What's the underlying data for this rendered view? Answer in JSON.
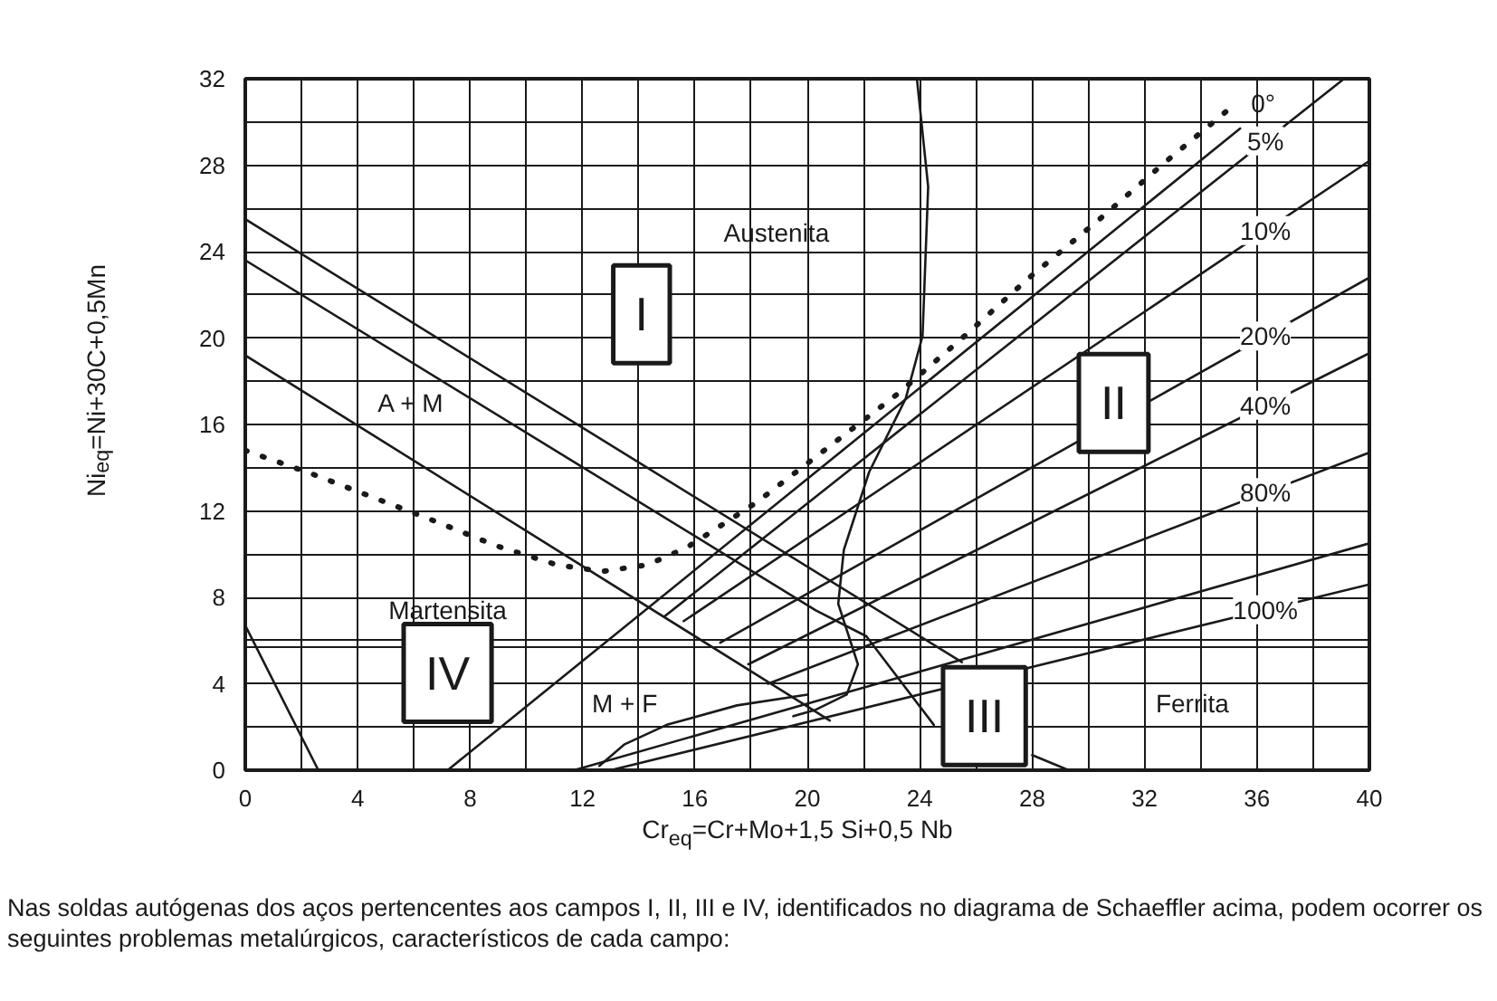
{
  "chart_data": {
    "type": "line",
    "xlabel": "Cr$_{eq}$=Cr+Mo+1,5 Si+0,5 Nb",
    "ylabel": "Ni$_{eq}$=Ni+30C+0,5Mn",
    "xlim": [
      0,
      40
    ],
    "ylim": [
      0,
      32
    ],
    "xticks": [
      0,
      {
        "value": 2,
        "label": null
      },
      4,
      {
        "value": 6,
        "label": null
      },
      8,
      {
        "value": 10,
        "label": null
      },
      12,
      {
        "value": 14,
        "label": null
      },
      16,
      {
        "value": 18,
        "label": null
      },
      20,
      {
        "value": 22,
        "label": null
      },
      24,
      {
        "value": 26,
        "label": null
      },
      28,
      {
        "value": 30,
        "label": null
      },
      32,
      {
        "value": 34,
        "label": null
      },
      36,
      {
        "value": 38,
        "label": null
      },
      40
    ],
    "yticks": [
      0,
      {
        "value": 2,
        "label": null
      },
      4,
      {
        "value": 6,
        "label": null
      },
      8,
      {
        "value": 10,
        "label": null
      },
      12,
      {
        "value": 14,
        "label": null
      },
      16,
      {
        "value": 18,
        "label": null
      },
      20,
      {
        "value": 22,
        "label": null
      },
      24,
      {
        "value": 26,
        "label": null
      },
      28,
      {
        "value": 30,
        "label": null
      },
      32
    ],
    "grid": true,
    "series": [
      {
        "color": "#1a1a1a",
        "x": [
          0,
          25.5
        ],
        "values": [
          25.5,
          5.0
        ]
      },
      {
        "color": "#1a1a1a",
        "x": [
          0,
          20.3,
          22.1,
          24.5,
          26.5,
          28,
          29.3
        ],
        "values": [
          23.6,
          7.4,
          6.2,
          2.1,
          null,
          0.7,
          0
        ]
      },
      {
        "color": "#1a1a1a",
        "x": [
          0,
          20.8
        ],
        "values": [
          19.2,
          2.3
        ]
      },
      {
        "color": "#1a1a1a",
        "x": [
          0,
          2.6
        ],
        "values": [
          6.7,
          0
        ]
      },
      {
        "color": "#1a1a1a",
        "x": [
          23.9,
          24.3,
          24.1,
          23.5,
          22.2,
          21.3,
          21.1,
          21.8,
          21.4,
          20.3,
          19.5
        ],
        "values": [
          32,
          27,
          20.1,
          17.2,
          13.8,
          10.2,
          7.7,
          4.9,
          3.5,
          2.8,
          2.5
        ]
      },
      {
        "color": "#1a1a1a",
        "x": [
          12.6,
          13.5,
          15,
          17.5,
          20
        ],
        "values": [
          0.2,
          1.2,
          2.1,
          3.0,
          3.5
        ]
      },
      {
        "color": "#1a1a1a",
        "line_style": "dotted",
        "x": [
          0,
          2.4,
          4.6,
          6.8,
          8.9,
          11.1,
          12.7,
          14.3,
          15.7,
          16.9,
          18.2,
          19.5,
          23.2,
          25.6,
          27.9,
          30.4,
          32.7,
          35.1
        ],
        "values": [
          14.8,
          13.7,
          12.6,
          11.5,
          10.4,
          9.5,
          9.2,
          9.5,
          10.3,
          11.3,
          12.4,
          13.7,
          17.4,
          20.1,
          22.8,
          25.5,
          28.1,
          30.7
        ]
      },
      {
        "name": "0°",
        "color": "#1a1a1a",
        "x": [
          7.2,
          35.4
        ],
        "values": [
          0,
          29.7
        ]
      },
      {
        "name": "5%",
        "color": "#1a1a1a",
        "x": [
          14.9,
          39.1
        ],
        "values": [
          7.1,
          32
        ]
      },
      {
        "name": "10%",
        "color": "#1a1a1a",
        "x": [
          15.6,
          40
        ],
        "values": [
          6.9,
          28.2
        ]
      },
      {
        "name": "20%",
        "color": "#1a1a1a",
        "x": [
          16.9,
          40
        ],
        "values": [
          5.9,
          22.8
        ]
      },
      {
        "name": "40%",
        "color": "#1a1a1a",
        "x": [
          17.9,
          40
        ],
        "values": [
          4.9,
          19.3
        ]
      },
      {
        "name": "80%",
        "color": "#1a1a1a",
        "x": [
          18.6,
          40
        ],
        "values": [
          4.0,
          14.7
        ]
      },
      {
        "color": "#1a1a1a",
        "x": [
          11.7,
          40
        ],
        "values": [
          0,
          10.5
        ]
      },
      {
        "name": "100%",
        "color": "#1a1a1a",
        "x": [
          13,
          40
        ],
        "values": [
          0,
          8.6
        ]
      }
    ],
    "ref_lines": [
      {
        "axis": "y",
        "value": 5.7,
        "color": "#1a1a1a"
      }
    ],
    "annotations": [
      "Austenita",
      "A + M",
      "Martensita",
      "M + F",
      "Ferrita",
      "I",
      "II",
      "III",
      "IV",
      "Nas soldas autógenas dos aços pertencentes aos campos I, II, III e IV, identificados no diagrama de Schaeffler acima, podem ocorrer os seguintes problemas metalúrgicos, característicos de cada campo:"
    ]
  }
}
